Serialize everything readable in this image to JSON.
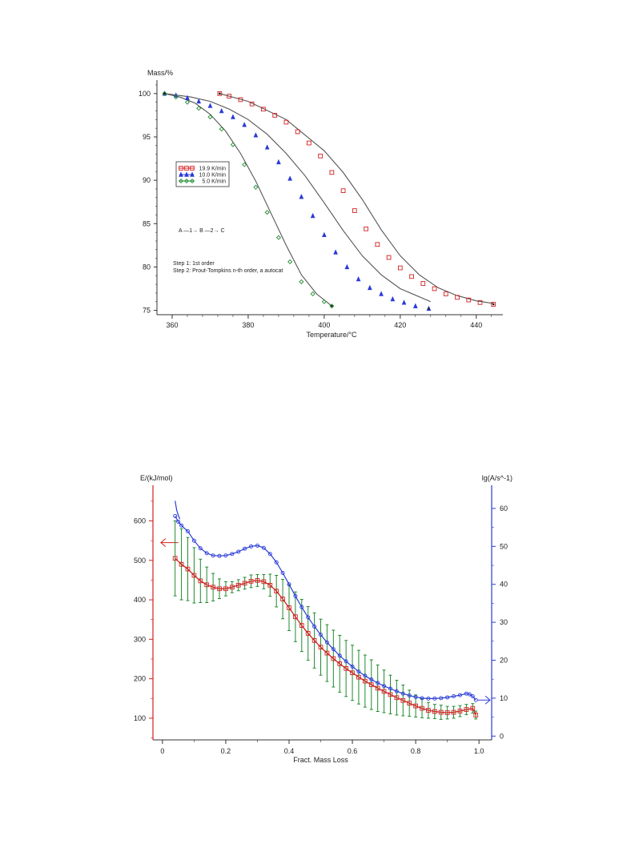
{
  "chart_data": [
    {
      "type": "line",
      "title": "",
      "xlabel": "Temperature/°C",
      "ylabel": "Mass/%",
      "xlim": [
        356,
        447
      ],
      "ylim": [
        74.5,
        101
      ],
      "xticks": [
        360,
        380,
        400,
        420,
        440
      ],
      "yticks": [
        75,
        80,
        85,
        90,
        95,
        100
      ],
      "legend_placement": "middle-left",
      "annotations": [
        "A —1→ B —2→ C",
        "Step 1: 1st order",
        "Step 2: Prout-Tompkins n-th order, a autocat"
      ],
      "series": [
        {
          "name": "19.9 K/min",
          "color": "#d42020",
          "marker": "square",
          "x": [
            372.5,
            375,
            378,
            381,
            384,
            387,
            390,
            393,
            396,
            399,
            402,
            405,
            408,
            411,
            414,
            417,
            420,
            423,
            426,
            429,
            432,
            435,
            438,
            441,
            444.5
          ],
          "y": [
            100,
            99.7,
            99.3,
            98.8,
            98.2,
            97.5,
            96.7,
            95.6,
            94.3,
            92.8,
            90.9,
            88.8,
            86.5,
            84.4,
            82.6,
            81.1,
            79.9,
            78.9,
            78.1,
            77.5,
            76.9,
            76.5,
            76.2,
            75.9,
            75.7
          ]
        },
        {
          "name": "10.0 K/min",
          "color": "#2a3bd8",
          "marker": "triangle",
          "x": [
            358,
            361,
            364,
            367,
            370,
            373,
            376,
            379,
            382,
            385,
            388,
            391,
            394,
            397,
            400,
            403,
            406,
            409,
            412,
            415,
            418,
            421,
            424,
            427.5
          ],
          "y": [
            100,
            99.8,
            99.5,
            99.1,
            98.6,
            98,
            97.3,
            96.4,
            95.2,
            93.8,
            92.1,
            90.2,
            88.1,
            85.9,
            83.7,
            81.7,
            80,
            78.6,
            77.6,
            76.9,
            76.3,
            75.9,
            75.5,
            75.2
          ]
        },
        {
          "name": "5.0 K/min",
          "color": "#1e8a2e",
          "marker": "diamond",
          "x": [
            358,
            361,
            364,
            367,
            370,
            373,
            376,
            379,
            382,
            385,
            388,
            391,
            394,
            397,
            400,
            402
          ],
          "y": [
            100,
            99.6,
            99,
            98.3,
            97.3,
            95.9,
            94.1,
            91.8,
            89.2,
            86.3,
            83.4,
            80.6,
            78.3,
            76.9,
            76,
            75.5
          ]
        }
      ],
      "fits": [
        {
          "x": [
            372.5,
            380,
            390,
            400,
            405,
            410,
            415,
            420,
            425,
            430,
            435,
            440,
            444.5
          ],
          "y": [
            100,
            99.1,
            97,
            93.4,
            90.9,
            87.8,
            84.3,
            81.3,
            79.1,
            77.6,
            76.7,
            76.1,
            75.8
          ]
        },
        {
          "x": [
            358,
            365,
            370,
            375,
            380,
            385,
            390,
            395,
            400,
            405,
            410,
            415,
            420,
            428
          ],
          "y": [
            100,
            99.6,
            99.1,
            98.2,
            97,
            95.3,
            93.1,
            90.5,
            87.4,
            84.2,
            81.3,
            79.1,
            77.5,
            76
          ]
        },
        {
          "x": [
            358,
            362,
            366,
            370,
            374,
            378,
            382,
            386,
            390,
            394,
            398,
            402
          ],
          "y": [
            100,
            99.6,
            98.9,
            97.6,
            95.7,
            93.1,
            89.9,
            86.2,
            82.5,
            79.1,
            76.9,
            75.5
          ]
        }
      ]
    },
    {
      "type": "line",
      "title": "",
      "xlabel": "Fract. Mass Loss",
      "ylabel": "E/(kJ/mol)",
      "y2label": "lg(A/s^-1)",
      "xlim": [
        -0.03,
        1.04
      ],
      "ylim": [
        45,
        670
      ],
      "y2lim": [
        -1,
        64
      ],
      "xticks": [
        0,
        0.2,
        0.4,
        0.6,
        0.8,
        1.0
      ],
      "xtick_labels": [
        "0",
        "0.2",
        "0.4",
        "0.6",
        "0.8",
        "1.0"
      ],
      "yticks": [
        100,
        200,
        300,
        400,
        500,
        600
      ],
      "y2ticks": [
        0,
        10,
        20,
        30,
        40,
        50,
        60
      ],
      "series": [
        {
          "name": "E",
          "axis": "left",
          "color": "#d42020",
          "marker": "square",
          "x": [
            0.04,
            0.06,
            0.08,
            0.1,
            0.12,
            0.14,
            0.16,
            0.18,
            0.2,
            0.22,
            0.24,
            0.26,
            0.28,
            0.3,
            0.32,
            0.34,
            0.36,
            0.38,
            0.4,
            0.42,
            0.44,
            0.46,
            0.48,
            0.5,
            0.52,
            0.54,
            0.56,
            0.58,
            0.6,
            0.62,
            0.64,
            0.66,
            0.68,
            0.7,
            0.72,
            0.74,
            0.76,
            0.78,
            0.8,
            0.82,
            0.84,
            0.86,
            0.88,
            0.9,
            0.92,
            0.94,
            0.96,
            0.98,
            0.99
          ],
          "y": [
            505,
            490,
            478,
            462,
            448,
            438,
            432,
            428,
            428,
            432,
            437,
            442,
            447,
            449,
            446,
            437,
            422,
            402,
            380,
            357,
            335,
            315,
            297,
            280,
            265,
            251,
            238,
            226,
            215,
            204,
            194,
            185,
            176,
            168,
            160,
            152,
            145,
            138,
            131,
            125,
            120,
            117,
            115,
            114,
            115,
            118,
            122,
            125,
            108
          ],
          "error": [
            95,
            90,
            80,
            70,
            55,
            45,
            35,
            25,
            18,
            14,
            14,
            15,
            16,
            15,
            18,
            28,
            40,
            50,
            58,
            63,
            66,
            68,
            70,
            71,
            72,
            72,
            72,
            71,
            70,
            68,
            66,
            63,
            59,
            54,
            49,
            44,
            39,
            33,
            28,
            24,
            20,
            18,
            18,
            16,
            15,
            14,
            13,
            12,
            10
          ]
        },
        {
          "name": "lg(A)",
          "axis": "right",
          "color": "#2a3bd8",
          "marker": "circle",
          "x": [
            0.04,
            0.05,
            0.06,
            0.08,
            0.1,
            0.12,
            0.14,
            0.16,
            0.18,
            0.2,
            0.22,
            0.24,
            0.26,
            0.28,
            0.3,
            0.32,
            0.34,
            0.36,
            0.38,
            0.4,
            0.42,
            0.44,
            0.46,
            0.48,
            0.5,
            0.52,
            0.54,
            0.56,
            0.58,
            0.6,
            0.62,
            0.64,
            0.66,
            0.68,
            0.7,
            0.72,
            0.74,
            0.76,
            0.78,
            0.8,
            0.82,
            0.84,
            0.86,
            0.88,
            0.9,
            0.92,
            0.94,
            0.96,
            0.97,
            0.98,
            0.99
          ],
          "y": [
            58,
            56.5,
            55.5,
            54,
            51.5,
            49.5,
            48.2,
            47.6,
            47.5,
            47.6,
            48,
            48.6,
            49.4,
            50,
            50.2,
            49.6,
            48,
            45.8,
            43,
            40,
            36.9,
            34,
            31.3,
            28.9,
            26.7,
            24.7,
            22.9,
            21.2,
            19.7,
            18.3,
            17,
            15.9,
            14.9,
            14,
            13.2,
            12.5,
            11.8,
            11.2,
            10.7,
            10.3,
            10,
            9.9,
            9.9,
            10,
            10.2,
            10.5,
            10.8,
            11.2,
            11,
            10.5,
            9.5
          ],
          "fit_extension": {
            "x": [
              0.04,
              0.042,
              0.045,
              0.05,
              0.055
            ],
            "y": [
              62,
              61,
              59.6,
              58.2,
              57.2
            ]
          }
        }
      ]
    }
  ],
  "chart2_labels": {
    "ylabel_left": "E/(kJ/mol)",
    "ylabel_right": "lg(A/s^-1)",
    "xlabel": "Fract. Mass Loss"
  }
}
